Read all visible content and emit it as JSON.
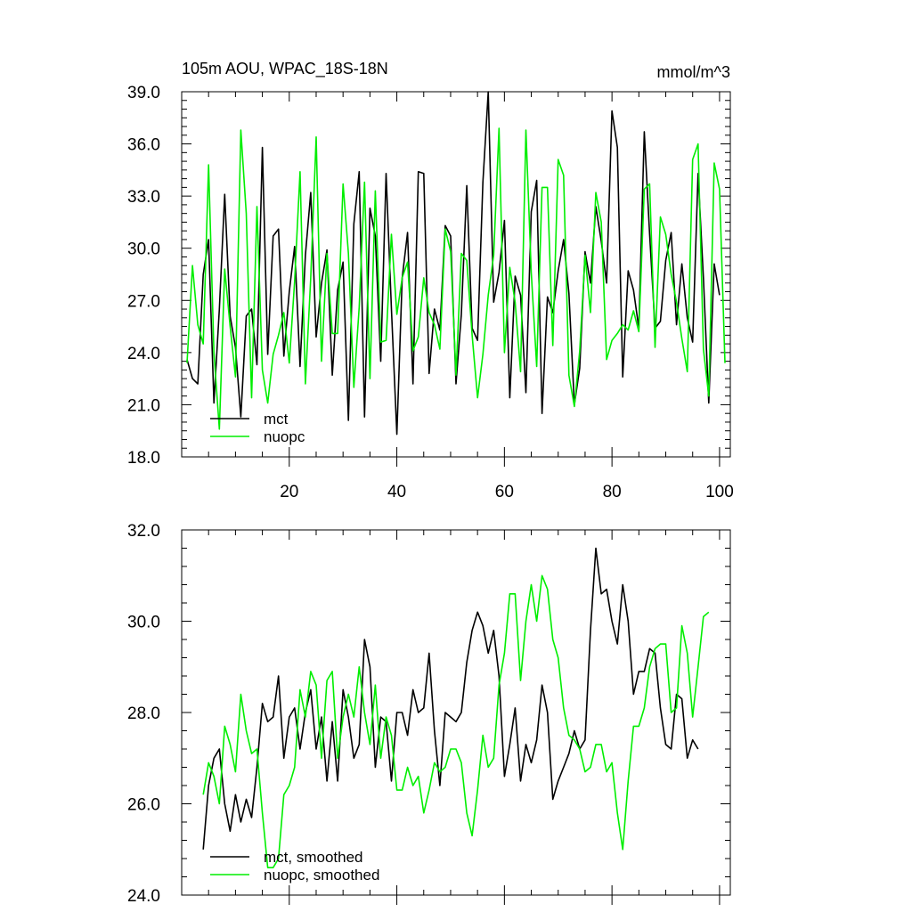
{
  "figure": {
    "title_left": "105m AOU, WPAC_18S-18N",
    "title_right": "mmol/m^3"
  },
  "colors": {
    "mct": "#000000",
    "nuopc": "#00ee00",
    "axis": "#000000",
    "background": "#ffffff"
  },
  "chart_data": [
    {
      "type": "line",
      "title": "105m AOU, WPAC_18S-18N",
      "units": "mmol/m^3",
      "xlim": [
        0,
        102
      ],
      "ylim": [
        18,
        39
      ],
      "x_ticks": [
        20,
        40,
        60,
        80,
        100
      ],
      "x_tick_labels": [
        "20",
        "40",
        "60",
        "80",
        "100"
      ],
      "y_ticks": [
        18,
        21,
        24,
        27,
        30,
        33,
        36,
        39
      ],
      "y_tick_labels": [
        "18.0",
        "21.0",
        "24.0",
        "27.0",
        "30.0",
        "33.0",
        "36.0",
        "39.0"
      ],
      "legend_position": "bottom-left",
      "x_start": 1,
      "series": [
        {
          "name": "mct",
          "color": "#000000",
          "values": [
            23.6,
            22.5,
            22.2,
            28.5,
            30.5,
            21.1,
            26.5,
            33.1,
            26.1,
            24.3,
            20.3,
            26.1,
            26.5,
            23.3,
            35.8,
            23.9,
            30.7,
            31.1,
            23.8,
            27.5,
            30.1,
            23.2,
            29.6,
            33.2,
            24.9,
            28.0,
            29.9,
            22.7,
            27.6,
            29.2,
            20.1,
            31.4,
            34.4,
            20.3,
            32.3,
            30.7,
            23.5,
            34.3,
            26.5,
            19.3,
            28.3,
            30.9,
            22.2,
            34.4,
            34.3,
            22.8,
            26.5,
            25.3,
            31.3,
            30.7,
            22.2,
            26.2,
            33.6,
            25.4,
            24.7,
            33.8,
            39.0,
            26.9,
            28.6,
            31.6,
            21.4,
            28.4,
            27.3,
            21.7,
            32.1,
            33.9,
            20.5,
            27.2,
            26.3,
            28.7,
            30.5,
            27.4,
            21.0,
            23.1,
            29.8,
            28.0,
            32.4,
            30.4,
            28.0,
            37.9,
            35.8,
            22.6,
            28.7,
            27.6,
            25.4,
            36.7,
            30.8,
            25.4,
            25.8,
            29.3,
            30.9,
            25.6,
            29.1,
            26.0,
            24.6,
            34.3,
            28.3,
            21.1,
            29.1,
            27.3
          ]
        },
        {
          "name": "nuopc",
          "color": "#00ee00",
          "values": [
            23.4,
            29.0,
            25.6,
            24.5,
            34.8,
            24.0,
            19.6,
            28.8,
            25.5,
            22.6,
            36.8,
            32.0,
            21.4,
            32.4,
            23.0,
            21.1,
            23.9,
            25.0,
            26.3,
            23.4,
            28.1,
            34.4,
            22.2,
            28.3,
            36.4,
            23.5,
            29.7,
            25.1,
            25.1,
            33.7,
            29.7,
            22.0,
            26.6,
            33.8,
            22.5,
            33.3,
            24.6,
            24.7,
            30.8,
            26.2,
            28.3,
            29.2,
            24.1,
            24.9,
            28.3,
            26.3,
            25.6,
            24.2,
            31.1,
            29.8,
            22.7,
            29.7,
            29.3,
            25.0,
            21.4,
            23.9,
            27.3,
            29.6,
            36.9,
            24.0,
            28.9,
            26.9,
            22.9,
            36.8,
            28.6,
            23.2,
            33.5,
            33.5,
            24.4,
            35.1,
            34.2,
            22.7,
            20.9,
            24.1,
            29.6,
            26.3,
            33.2,
            31.5,
            23.6,
            24.7,
            25.1,
            25.6,
            25.3,
            26.4,
            25.2,
            33.4,
            33.7,
            24.3,
            31.8,
            30.8,
            28.5,
            26.9,
            24.8,
            22.9,
            35.1,
            36.0,
            24.2,
            21.5,
            34.9,
            33.4,
            23.4
          ]
        }
      ]
    },
    {
      "type": "line",
      "xlim": [
        0,
        102
      ],
      "ylim": [
        24,
        32
      ],
      "x_ticks": [
        20,
        40,
        60,
        80,
        100
      ],
      "x_tick_labels": [],
      "y_ticks": [
        24,
        26,
        28,
        30,
        32
      ],
      "y_tick_labels": [
        "24.0",
        "26.0",
        "28.0",
        "30.0",
        "32.0"
      ],
      "legend_position": "bottom-left",
      "x_start": 4,
      "series": [
        {
          "name": "mct, smoothed",
          "color": "#000000",
          "values": [
            25.0,
            26.4,
            27.0,
            27.2,
            26.0,
            25.4,
            26.2,
            25.6,
            26.1,
            25.7,
            26.8,
            28.2,
            27.8,
            27.9,
            28.8,
            27.0,
            27.9,
            28.1,
            27.2,
            28.0,
            28.5,
            27.2,
            27.9,
            26.5,
            27.8,
            26.5,
            28.5,
            27.9,
            27.0,
            27.3,
            29.6,
            29.0,
            26.8,
            27.9,
            27.8,
            26.5,
            28.0,
            28.0,
            27.5,
            28.5,
            28.0,
            28.1,
            29.3,
            27.6,
            26.4,
            28.0,
            27.9,
            27.8,
            28.0,
            29.1,
            29.8,
            30.2,
            29.9,
            29.3,
            29.8,
            28.8,
            26.6,
            27.3,
            28.1,
            26.5,
            27.3,
            26.9,
            27.4,
            28.6,
            28.0,
            26.1,
            26.5,
            26.8,
            27.1,
            27.6,
            27.2,
            27.4,
            29.8,
            31.6,
            30.6,
            30.7,
            30.0,
            29.5,
            30.8,
            30.0,
            28.4,
            28.9,
            28.9,
            29.4,
            29.3,
            28.1,
            27.3,
            27.2,
            28.4,
            28.3,
            27.0,
            27.4,
            27.2
          ]
        },
        {
          "name": "nuopc, smoothed",
          "color": "#00ee00",
          "values": [
            26.2,
            26.9,
            26.6,
            26.0,
            27.7,
            27.3,
            26.7,
            28.4,
            27.6,
            27.1,
            27.2,
            25.8,
            24.6,
            24.6,
            24.8,
            26.2,
            26.4,
            26.8,
            28.5,
            27.9,
            28.9,
            28.6,
            27.0,
            28.7,
            28.9,
            27.0,
            27.9,
            28.4,
            27.9,
            29.0,
            28.0,
            27.3,
            28.6,
            27.0,
            27.9,
            27.5,
            26.3,
            26.3,
            26.8,
            26.4,
            26.6,
            25.8,
            26.3,
            26.9,
            26.7,
            26.8,
            27.2,
            27.2,
            26.9,
            25.8,
            25.3,
            26.3,
            27.5,
            26.8,
            27.0,
            28.6,
            29.3,
            30.6,
            30.6,
            28.7,
            30.0,
            30.8,
            30.0,
            31.0,
            30.7,
            29.6,
            29.2,
            28.1,
            27.5,
            27.4,
            27.2,
            26.7,
            26.8,
            27.3,
            27.3,
            26.7,
            26.9,
            25.8,
            25.0,
            26.5,
            27.7,
            27.7,
            28.1,
            29.0,
            29.4,
            29.5,
            29.5,
            28.0,
            28.1,
            29.9,
            29.3,
            27.9,
            29.0,
            30.1,
            30.2
          ]
        }
      ]
    }
  ]
}
